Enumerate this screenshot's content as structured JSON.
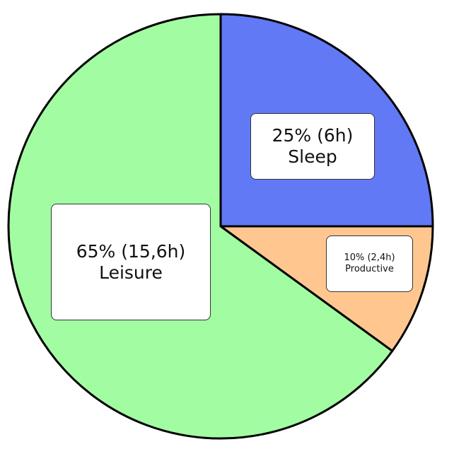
{
  "chart_data": {
    "type": "pie",
    "slices": [
      {
        "key": "sleep",
        "label": "Sleep",
        "percent": 25,
        "value_text": "25% (6h)",
        "color": "#6179f5"
      },
      {
        "key": "productive",
        "label": "Productive",
        "percent": 10,
        "value_text": "10% (2,4h)",
        "color": "#ffc78f"
      },
      {
        "key": "leisure",
        "label": "Leisure",
        "percent": 65,
        "value_text": "65% (15,6h)",
        "color": "#a2fda2"
      }
    ],
    "start_angle": "top (12 o'clock)",
    "direction": "clockwise",
    "legend": "none",
    "slice_outline_color": "#000000"
  }
}
